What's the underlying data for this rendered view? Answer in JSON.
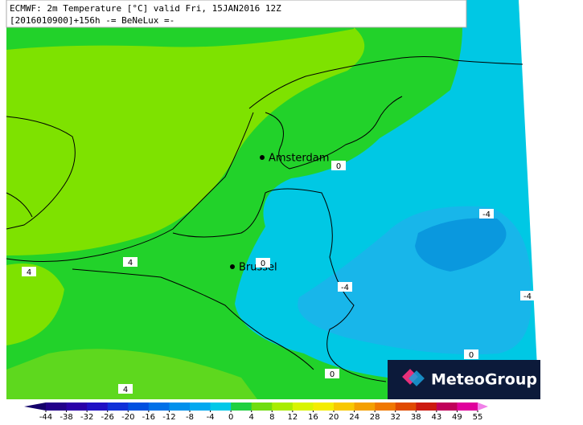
{
  "header": {
    "line1": "ECMWF: 2m Temperature [°C] valid Fri, 15JAN2016 12Z",
    "line2": "[2016010900]+156h -= BeNeLux =-"
  },
  "cities": [
    "Amsterdam",
    "Brussel"
  ],
  "contour_labels": [
    0,
    -4,
    4,
    4,
    0,
    -4,
    -4,
    0,
    0,
    4
  ],
  "logo": "MeteoGroup",
  "colorbar": {
    "ticks": [
      -44,
      -38,
      -32,
      -26,
      -20,
      -16,
      -12,
      -8,
      -4,
      0,
      4,
      8,
      12,
      16,
      20,
      24,
      28,
      32,
      38,
      43,
      49,
      55
    ],
    "colors": [
      "#14006a",
      "#22008a",
      "#2a00a8",
      "#2010c4",
      "#1030d8",
      "#0050e0",
      "#0070e8",
      "#0090ec",
      "#00a8f0",
      "#00c8e8",
      "#20d040",
      "#70dc10",
      "#a8ec00",
      "#d8f400",
      "#f4ec00",
      "#f8c800",
      "#f4a000",
      "#f07800",
      "#e04a00",
      "#cc1a10",
      "#c0005a",
      "#e0009c",
      "#f080e8"
    ]
  }
}
